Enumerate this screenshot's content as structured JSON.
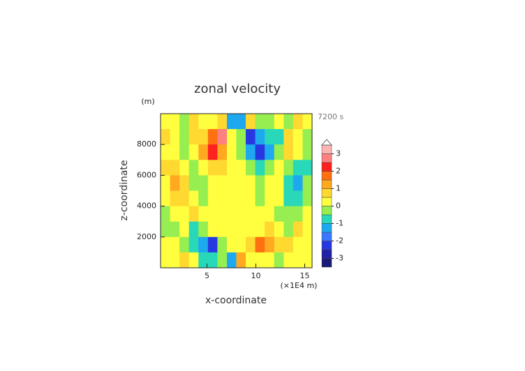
{
  "chart_data": {
    "type": "contour",
    "title": "zonal velocity",
    "time_label": "7200 s",
    "xlabel": "x-coordinate",
    "ylabel": "z-coordinate",
    "x_unit": "(×1E4 m)",
    "y_unit": "(m)",
    "xlim": [
      0.25,
      15.75
    ],
    "ylim": [
      0,
      10000
    ],
    "xticks": [
      5,
      10,
      15
    ],
    "yticks": [
      2000,
      4000,
      6000,
      8000
    ],
    "x": [
      0.73,
      1.7,
      2.67,
      3.64,
      4.61,
      5.58,
      6.55,
      7.52,
      8.48,
      9.45,
      10.42,
      11.39,
      12.36,
      13.33,
      14.3,
      15.27
    ],
    "z": [
      9500,
      8500,
      7500,
      6500,
      5500,
      4500,
      3500,
      2500,
      1500,
      500
    ],
    "values": [
      [
        0.2,
        0.3,
        -0.3,
        0.5,
        0.3,
        0.2,
        0.5,
        -1.5,
        -1.2,
        0.5,
        -0.2,
        -0.3,
        0.3,
        -0.3,
        0.6,
        0.2
      ],
      [
        0.5,
        0.3,
        -0.5,
        0.6,
        0.8,
        1.5,
        2.6,
        0.3,
        -0.3,
        -2.5,
        -1.5,
        -0.8,
        -0.6,
        0.5,
        0.3,
        -0.5
      ],
      [
        0.4,
        0.2,
        -0.5,
        0.3,
        1.2,
        2.2,
        1.0,
        0.2,
        -0.2,
        -1.2,
        -2.3,
        -1.2,
        -0.3,
        0.5,
        0.2,
        -0.3
      ],
      [
        0.6,
        0.8,
        0.2,
        -0.3,
        0.4,
        0.8,
        0.6,
        0.2,
        0.1,
        -0.5,
        -0.8,
        -0.5,
        0.3,
        -0.2,
        -0.8,
        -0.6
      ],
      [
        0.3,
        1.3,
        0.8,
        -0.2,
        -0.3,
        0.3,
        0.2,
        0.3,
        0.2,
        0.2,
        -0.2,
        0.3,
        0.4,
        -0.8,
        -1.5,
        -0.4
      ],
      [
        0.2,
        0.8,
        0.6,
        0.2,
        -0.2,
        0.3,
        0.2,
        0.2,
        0.2,
        0.2,
        -0.3,
        0.3,
        0.2,
        -0.6,
        -0.8,
        -0.2
      ],
      [
        -0.3,
        0.2,
        0.3,
        0.5,
        0.2,
        0.2,
        0.3,
        0.2,
        0.2,
        0.3,
        0.3,
        0.2,
        -0.3,
        -0.4,
        -0.2,
        0.3
      ],
      [
        -0.5,
        -0.3,
        0.3,
        -0.8,
        -0.5,
        0.2,
        0.3,
        0.2,
        0.3,
        0.2,
        0.4,
        0.8,
        0.2,
        -0.2,
        0.6,
        0.4
      ],
      [
        0.2,
        0.3,
        -0.5,
        -0.8,
        -1.5,
        -2.2,
        -0.5,
        0.2,
        0.3,
        0.5,
        1.8,
        1.2,
        0.6,
        0.5,
        0.3,
        0.2
      ],
      [
        0.3,
        0.2,
        0.5,
        0.2,
        -0.6,
        -0.6,
        -0.4,
        -1.5,
        1.2,
        0.4,
        0.4,
        0.3,
        -0.3,
        0.2,
        0.3,
        0.2
      ]
    ],
    "levels": [
      -3.5,
      -3,
      -2.5,
      -2,
      -1.5,
      -1,
      -0.5,
      0,
      0.5,
      1,
      1.5,
      2,
      2.5,
      3,
      3.5
    ],
    "colors": [
      "#1a1a78",
      "#2020a8",
      "#2838e0",
      "#3c78ff",
      "#1ea8f0",
      "#28d8b8",
      "#96ee50",
      "#ffff40",
      "#ffd830",
      "#ffa820",
      "#ff7010",
      "#ff2020",
      "#ff8080",
      "#ffb4b4"
    ],
    "over_color": "#ffffff",
    "cbar_ticks": [
      -3,
      -2,
      -1,
      0,
      1,
      2,
      3
    ]
  }
}
